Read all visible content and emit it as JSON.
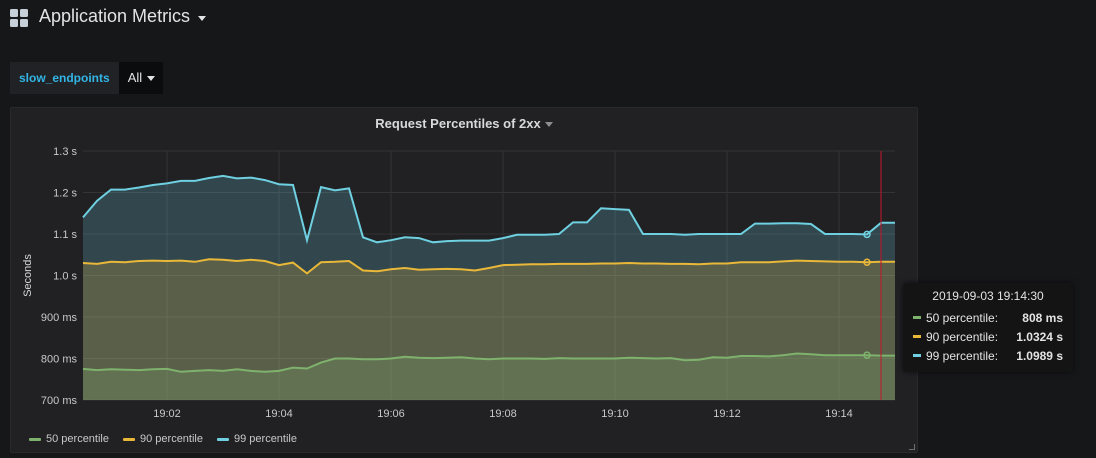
{
  "header": {
    "title": "Application Metrics"
  },
  "variables": {
    "name": "slow_endpoints",
    "value": "All"
  },
  "panel": {
    "title": "Request Percentiles of 2xx"
  },
  "colors": {
    "p50": "#7eb26d",
    "p90": "#eab839",
    "p99": "#6ed0e0",
    "cursor": "#c4162a"
  },
  "chart_data": {
    "type": "area",
    "ylabel": "Seconds",
    "ylim": [
      0.7,
      1.3
    ],
    "yticks": [
      {
        "v": 0.7,
        "label": "700 ms"
      },
      {
        "v": 0.8,
        "label": "800 ms"
      },
      {
        "v": 0.9,
        "label": "900 ms"
      },
      {
        "v": 1.0,
        "label": "1.0 s"
      },
      {
        "v": 1.1,
        "label": "1.1 s"
      },
      {
        "v": 1.2,
        "label": "1.2 s"
      },
      {
        "v": 1.3,
        "label": "1.3 s"
      }
    ],
    "xlim": [
      "19:00:30",
      "19:15:00"
    ],
    "xticks": [
      "19:02",
      "19:04",
      "19:06",
      "19:08",
      "19:10",
      "19:12",
      "19:14"
    ],
    "x": [
      "19:00:30",
      "19:00:45",
      "19:01:00",
      "19:01:15",
      "19:01:30",
      "19:01:45",
      "19:02:00",
      "19:02:15",
      "19:02:30",
      "19:02:45",
      "19:03:00",
      "19:03:15",
      "19:03:30",
      "19:03:45",
      "19:04:00",
      "19:04:15",
      "19:04:30",
      "19:04:45",
      "19:05:00",
      "19:05:15",
      "19:05:30",
      "19:05:45",
      "19:06:00",
      "19:06:15",
      "19:06:30",
      "19:06:45",
      "19:07:00",
      "19:07:15",
      "19:07:30",
      "19:07:45",
      "19:08:00",
      "19:08:15",
      "19:08:30",
      "19:08:45",
      "19:09:00",
      "19:09:15",
      "19:09:30",
      "19:09:45",
      "19:10:00",
      "19:10:15",
      "19:10:30",
      "19:10:45",
      "19:11:00",
      "19:11:15",
      "19:11:30",
      "19:11:45",
      "19:12:00",
      "19:12:15",
      "19:12:30",
      "19:12:45",
      "19:13:00",
      "19:13:15",
      "19:13:30",
      "19:13:45",
      "19:14:00",
      "19:14:15",
      "19:14:30",
      "19:14:45",
      "19:15:00"
    ],
    "series": [
      {
        "name": "50 percentile",
        "values": [
          0.775,
          0.772,
          0.774,
          0.773,
          0.772,
          0.774,
          0.775,
          0.768,
          0.77,
          0.772,
          0.77,
          0.774,
          0.77,
          0.768,
          0.77,
          0.778,
          0.776,
          0.79,
          0.8,
          0.8,
          0.798,
          0.798,
          0.8,
          0.804,
          0.802,
          0.801,
          0.802,
          0.803,
          0.8,
          0.798,
          0.8,
          0.8,
          0.8,
          0.799,
          0.801,
          0.8,
          0.8,
          0.8,
          0.8,
          0.802,
          0.801,
          0.8,
          0.801,
          0.796,
          0.797,
          0.803,
          0.802,
          0.806,
          0.806,
          0.805,
          0.808,
          0.812,
          0.81,
          0.808,
          0.808,
          0.808,
          0.808,
          0.807,
          0.807
        ]
      },
      {
        "name": "90 percentile",
        "values": [
          1.03,
          1.028,
          1.033,
          1.032,
          1.035,
          1.036,
          1.035,
          1.036,
          1.033,
          1.039,
          1.038,
          1.035,
          1.038,
          1.035,
          1.025,
          1.031,
          1.005,
          1.032,
          1.033,
          1.035,
          1.012,
          1.01,
          1.015,
          1.018,
          1.014,
          1.015,
          1.016,
          1.015,
          1.012,
          1.018,
          1.025,
          1.026,
          1.027,
          1.027,
          1.028,
          1.028,
          1.028,
          1.029,
          1.029,
          1.03,
          1.029,
          1.029,
          1.028,
          1.028,
          1.027,
          1.029,
          1.029,
          1.032,
          1.032,
          1.032,
          1.034,
          1.036,
          1.035,
          1.034,
          1.033,
          1.033,
          1.032,
          1.033,
          1.033
        ]
      },
      {
        "name": "99 percentile",
        "values": [
          1.14,
          1.18,
          1.207,
          1.207,
          1.212,
          1.218,
          1.222,
          1.228,
          1.228,
          1.235,
          1.24,
          1.234,
          1.236,
          1.23,
          1.22,
          1.218,
          1.085,
          1.213,
          1.205,
          1.21,
          1.092,
          1.08,
          1.085,
          1.092,
          1.09,
          1.08,
          1.083,
          1.084,
          1.084,
          1.084,
          1.09,
          1.098,
          1.098,
          1.098,
          1.1,
          1.128,
          1.128,
          1.162,
          1.16,
          1.158,
          1.1,
          1.1,
          1.1,
          1.098,
          1.1,
          1.1,
          1.1,
          1.1,
          1.125,
          1.125,
          1.126,
          1.126,
          1.124,
          1.1,
          1.1,
          1.1,
          1.099,
          1.127,
          1.127
        ]
      }
    ],
    "hover": {
      "x": "19:14:30"
    },
    "cursor_x": "19:14:45"
  },
  "tooltip": {
    "time": "2019-09-03 19:14:30",
    "rows": [
      {
        "name": "50 percentile:",
        "value": "808 ms"
      },
      {
        "name": "90 percentile:",
        "value": "1.0324 s"
      },
      {
        "name": "99 percentile:",
        "value": "1.0989 s"
      }
    ]
  }
}
